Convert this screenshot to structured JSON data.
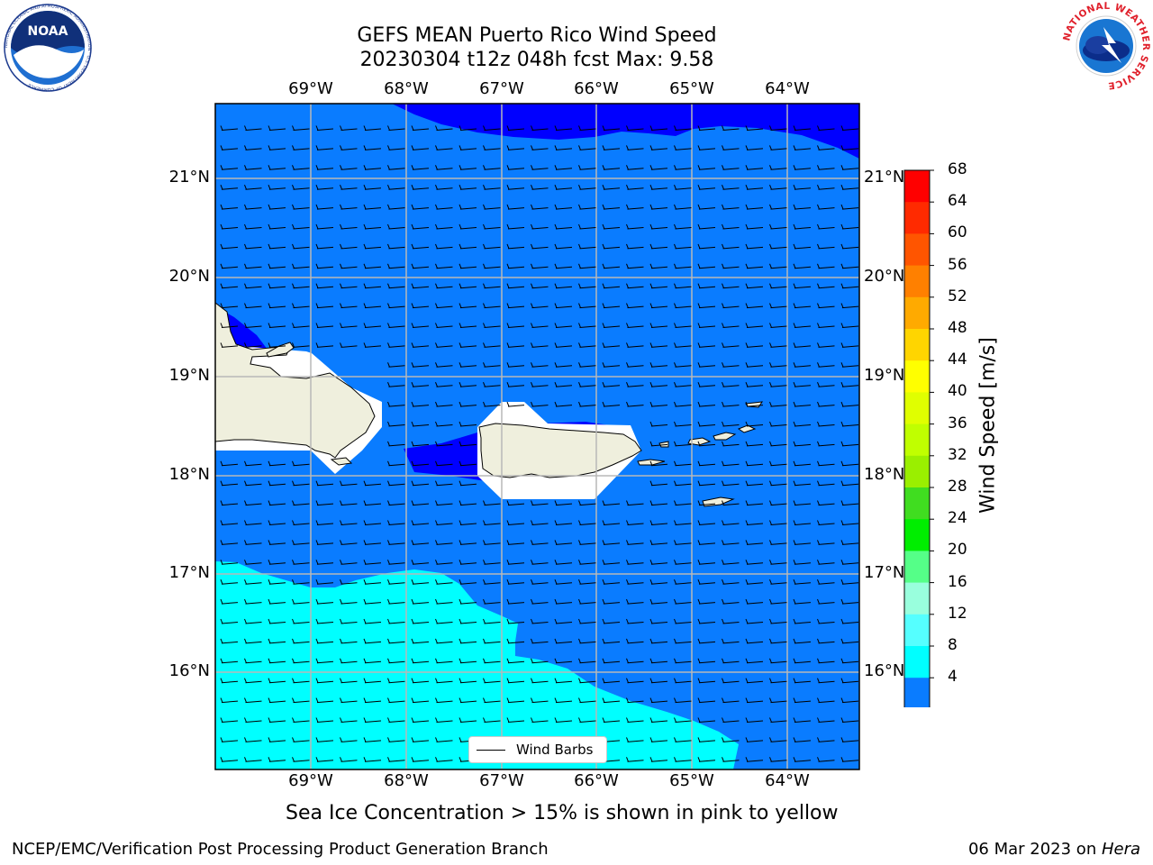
{
  "header": {
    "title_line1": "GEFS MEAN Puerto Rico Wind Speed",
    "title_line2": "20230304 t12z 048h fcst   Max: 9.58"
  },
  "logos": {
    "noaa_text": "NOAA",
    "noaa_ring_text": "NATIONAL OCEANIC AND ATMOSPHERIC ADMINISTRATION · U.S. DEPARTMENT OF COMMERCE",
    "nws_ring_text": "NATIONAL WEATHER SERVICE"
  },
  "map": {
    "lon_labels": [
      "69°W",
      "68°W",
      "67°W",
      "66°W",
      "65°W",
      "64°W"
    ],
    "lat_labels": [
      "21°N",
      "20°N",
      "19°N",
      "18°N",
      "17°N",
      "16°N"
    ],
    "legend_label": "Wind Barbs",
    "colors": {
      "band_4_8": "#0a7cff",
      "band_below_4": "#0000ff",
      "band_8_12": "#00ffff",
      "land": "#efefdd",
      "gridline": "#b8b8b8"
    }
  },
  "colorbar": {
    "label": "Wind Speed [m/s]",
    "ticks": [
      "68",
      "64",
      "60",
      "56",
      "52",
      "48",
      "44",
      "40",
      "36",
      "32",
      "28",
      "24",
      "20",
      "16",
      "12",
      "8",
      "4"
    ],
    "colors_top_to_bottom": [
      "#ff0000",
      "#ff2a00",
      "#ff5500",
      "#ff8000",
      "#ffaa00",
      "#ffd500",
      "#ffff00",
      "#e0ff00",
      "#c0ff00",
      "#9aef00",
      "#40dd20",
      "#00ee00",
      "#55ff88",
      "#99ffdd",
      "#55ffff",
      "#00ffff",
      "#0a7cff"
    ],
    "extend_color": "#0000ff"
  },
  "footer": {
    "note": "Sea Ice Concentration > 15% is shown in pink to yellow",
    "branch": "NCEP/EMC/Verification Post Processing Product Generation Branch",
    "date": "06 Mar 2023 on ",
    "machine": "Hera"
  }
}
